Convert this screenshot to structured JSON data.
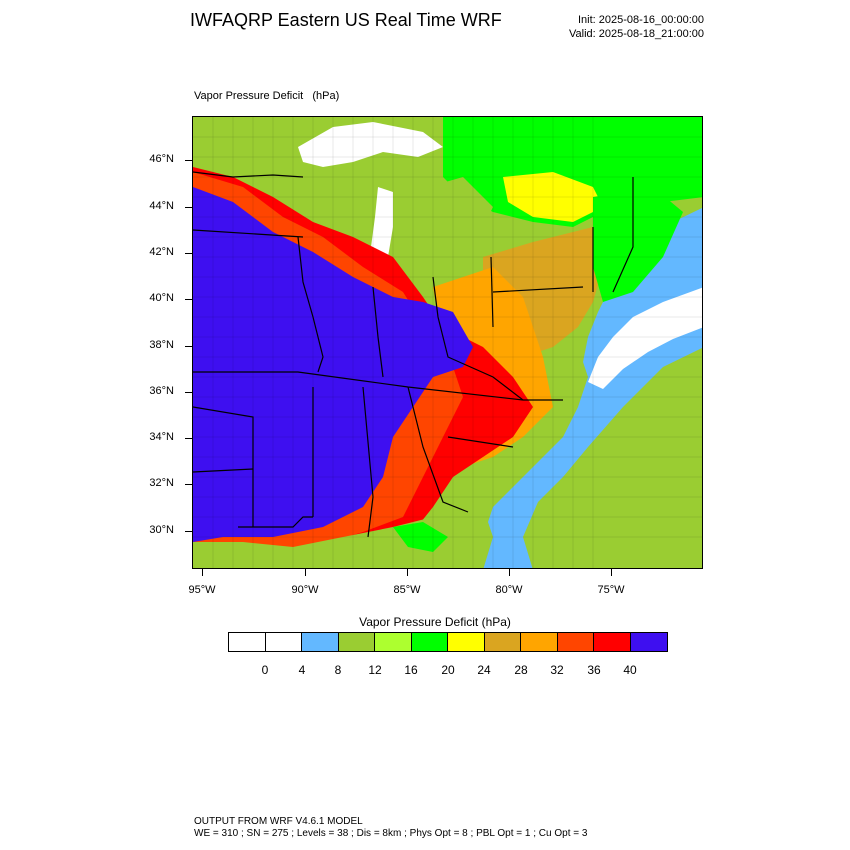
{
  "header": {
    "title": "IWFAQRP Eastern US Real Time WRF",
    "init": "Init: 2025-08-16_00:00:00",
    "valid": "Valid: 2025-08-18_21:00:00"
  },
  "map": {
    "field_label": "Vapor Pressure Deficit   (hPa)",
    "lat_labels": [
      "46°N",
      "44°N",
      "42°N",
      "40°N",
      "38°N",
      "36°N",
      "34°N",
      "32°N",
      "30°N"
    ],
    "lon_labels": [
      "95°W",
      "90°W",
      "85°W",
      "80°W",
      "75°W"
    ],
    "colors": {
      "land_default": "#9acd32",
      "water": "#ffffff",
      "ocean_light": "#63b8ff",
      "purple": "#3e0ff0",
      "red": "#ff0000",
      "orange_red": "#ff4500",
      "orange": "#ffa500",
      "goldenrod": "#daa520",
      "yellow": "#ffff00",
      "green": "#00ff00",
      "yellowgreen": "#adff2f",
      "olive_green": "#9acd32"
    }
  },
  "colorbar": {
    "title": "Vapor Pressure Deficit  (hPa)",
    "colors": [
      "#ffffff",
      "#ffffff",
      "#63b8ff",
      "#9acd32",
      "#adff2f",
      "#00ff00",
      "#ffff00",
      "#daa520",
      "#ffa500",
      "#ff4500",
      "#ff0000",
      "#3e0ff0"
    ],
    "labels": [
      "0",
      "4",
      "8",
      "12",
      "16",
      "20",
      "24",
      "28",
      "32",
      "36",
      "40"
    ]
  },
  "footer": {
    "line1": "OUTPUT FROM WRF V4.6.1 MODEL",
    "line2": "WE = 310 ; SN = 275 ; Levels = 38 ; Dis = 8km ; Phys Opt = 8 ; PBL Opt = 1 ; Cu Opt = 3"
  }
}
